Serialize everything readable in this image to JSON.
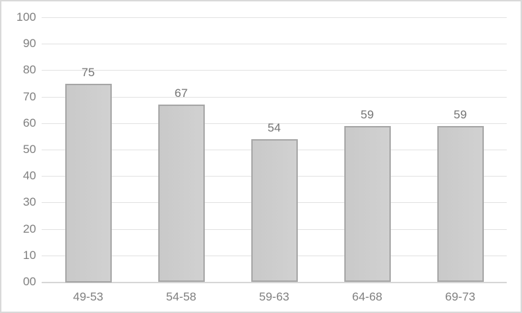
{
  "chart_data": {
    "type": "bar",
    "title": "",
    "xlabel": "",
    "ylabel": "",
    "categories": [
      "49-53",
      "54-58",
      "59-63",
      "64-68",
      "69-73"
    ],
    "values": [
      75,
      67,
      54,
      59,
      59
    ],
    "data_labels": [
      "75",
      "67",
      "54",
      "59",
      "59"
    ],
    "y_ticks": {
      "values": [
        0,
        10,
        20,
        30,
        40,
        50,
        60,
        70,
        80,
        90,
        100
      ],
      "labels": [
        "00",
        "10",
        "20",
        "30",
        "40",
        "50",
        "60",
        "70",
        "80",
        "90",
        "100"
      ]
    },
    "ylim": [
      0,
      100
    ],
    "grid": true,
    "legend": "none",
    "colors": {
      "bar_fill": "#cccccc",
      "bar_border": "#a6a6a6",
      "gridline": "#e2e2e2",
      "axis_line": "#d6d6d6",
      "tick_text": "#7f7f7f",
      "data_label_text": "#737373",
      "frame_border": "#d9d9d9",
      "background": "#ffffff"
    }
  }
}
